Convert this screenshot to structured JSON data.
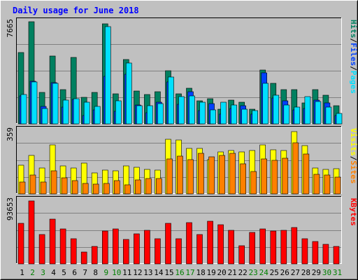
{
  "chart_data": {
    "title": "Daily usage for June 2018",
    "days": [
      "1",
      "2",
      "3",
      "4",
      "5",
      "6",
      "7",
      "8",
      "9",
      "10",
      "11",
      "12",
      "13",
      "14",
      "15",
      "16",
      "17",
      "18",
      "19",
      "20",
      "21",
      "22",
      "23",
      "24",
      "25",
      "26",
      "27",
      "28",
      "29",
      "30",
      "31"
    ],
    "weekend_days": [
      2,
      3,
      9,
      10,
      16,
      17,
      23,
      24,
      30,
      31
    ],
    "panels": [
      {
        "type": "bar",
        "ymax_label": "7665",
        "ylim": [
          0,
          7665
        ],
        "series": [
          {
            "name": "Hits",
            "color": "#008060",
            "values": [
              5235,
              7460,
              2295,
              4975,
              2510,
              4855,
              1955,
              2315,
              7300,
              2220,
              4680,
              2415,
              2130,
              2330,
              3870,
              2175,
              2595,
              1665,
              1850,
              1065,
              1745,
              1595,
              1095,
              3945,
              2985,
              2525,
              2510,
              1535,
              2490,
              2070,
              1335
            ]
          },
          {
            "name": "Files",
            "color": "#0040ff",
            "values": [
              2050,
              3115,
              1265,
              3000,
              1240,
              1780,
              630,
              1040,
              3470,
              900,
              3650,
              1395,
              825,
              1570,
              3060,
              1445,
              2355,
              995,
              1470,
              715,
              1145,
              1325,
              715,
              3715,
              1915,
              1675,
              1035,
              1120,
              1750,
              1520,
              590
            ]
          },
          {
            "name": "Pages",
            "color": "#00e0ff",
            "values": [
              2150,
              3050,
              1140,
              2960,
              1740,
              1830,
              1585,
              1260,
              7080,
              1665,
              4460,
              1350,
              1345,
              1460,
              3435,
              1975,
              2030,
              1590,
              1030,
              1580,
              1390,
              1070,
              990,
              2965,
              2070,
              1375,
              1215,
              1990,
              1650,
              1230,
              785
            ]
          }
        ]
      },
      {
        "type": "bar",
        "ymax_label": "359",
        "ylim": [
          0,
          359
        ],
        "series": [
          {
            "name": "Visits",
            "color": "#ffff00",
            "values": [
              154,
              206,
              140,
              263,
              150,
              138,
              168,
              113,
              129,
              126,
              152,
              143,
              133,
              128,
              295,
              291,
              245,
              244,
              186,
              226,
              233,
              227,
              235,
              264,
              237,
              234,
              336,
              260,
              140,
              134,
              137
            ]
          },
          {
            "name": "Sites",
            "color": "#ff8000",
            "values": [
              65,
              103,
              63,
              123,
              87,
              71,
              56,
              54,
              55,
              73,
              51,
              74,
              85,
              85,
              190,
              205,
              186,
              221,
              201,
              209,
              220,
              164,
              121,
              188,
              181,
              191,
              275,
              214,
              105,
              102,
              92
            ]
          }
        ]
      },
      {
        "type": "bar",
        "ymax_label": "93653",
        "ylim": [
          0,
          93653
        ],
        "series": [
          {
            "name": "KBytes",
            "color": "#ff0000",
            "values": [
              57295,
              88595,
              41040,
              63180,
              49105,
              35510,
              17245,
              25100,
              46240,
              49080,
              34210,
              42600,
              47170,
              35170,
              56850,
              35165,
              57915,
              41595,
              59705,
              55300,
              47060,
              25140,
              44430,
              49610,
              46445,
              47085,
              50805,
              35880,
              31285,
              27345,
              24965
            ]
          }
        ]
      }
    ],
    "legend_right": [
      {
        "text": "Pages",
        "color": "#00e0ff",
        "panel": 0
      },
      {
        "text": "/",
        "color": "#000000",
        "panel": 0
      },
      {
        "text": "Files",
        "color": "#0040ff",
        "panel": 0
      },
      {
        "text": "/",
        "color": "#000000",
        "panel": 0
      },
      {
        "text": "Hits",
        "color": "#008060",
        "panel": 0
      },
      {
        "text": "Sites",
        "color": "#ff8000",
        "panel": 1
      },
      {
        "text": "/",
        "color": "#000000",
        "panel": 1
      },
      {
        "text": "Visits",
        "color": "#ffff00",
        "panel": 1
      },
      {
        "text": "KBytes",
        "color": "#ff0000",
        "panel": 2
      }
    ],
    "colors": {
      "background": "#c0c0c0",
      "plot_background": "#c0c0c0",
      "title": "#0000ff",
      "weekday_label": "#000000",
      "weekend_label": "#008000",
      "gridline": "#808080"
    }
  }
}
